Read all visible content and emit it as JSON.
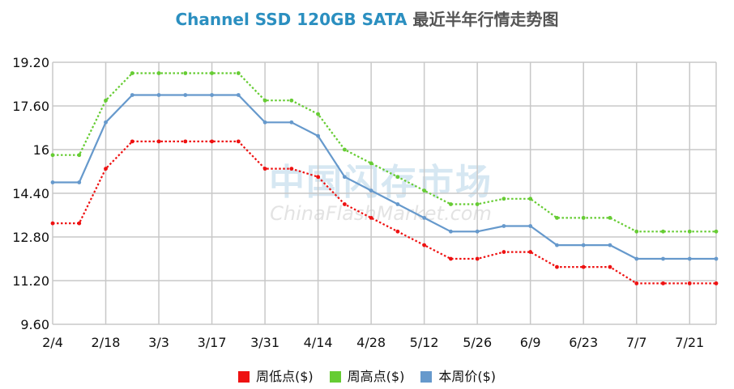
{
  "title": {
    "product": "Channel SSD 120GB SATA",
    "suffix": "最近半年行情走势图"
  },
  "watermark": {
    "cn": "中国闪存市场",
    "en": "ChinaFlashMarket.com"
  },
  "chart_data": {
    "type": "line",
    "title": "Channel SSD 120GB SATA 最近半年行情走势图",
    "x_ticks": [
      "2/4",
      "2/18",
      "3/3",
      "3/17",
      "3/31",
      "4/14",
      "4/28",
      "5/12",
      "5/26",
      "6/9",
      "6/23",
      "7/7",
      "7/21"
    ],
    "y_ticks": [
      "9.60",
      "11.20",
      "12.80",
      "14.40",
      "16",
      "17.60",
      "19.20"
    ],
    "ylim": [
      9.6,
      19.2
    ],
    "grid": true,
    "legend_position": "bottom",
    "x": [
      "2/4",
      "2/11",
      "2/18",
      "2/25",
      "3/3",
      "3/10",
      "3/17",
      "3/24",
      "3/31",
      "4/7",
      "4/14",
      "4/21",
      "4/28",
      "5/5",
      "5/12",
      "5/19",
      "5/26",
      "6/2",
      "6/9",
      "6/16",
      "6/23",
      "6/30",
      "7/7",
      "7/14",
      "7/21",
      "7/28"
    ],
    "series": [
      {
        "name": "周低点($)",
        "color": "#ee1111",
        "style": "dotted",
        "values": [
          13.3,
          13.3,
          15.3,
          16.3,
          16.3,
          16.3,
          16.3,
          16.3,
          15.3,
          15.3,
          15.0,
          14.0,
          13.5,
          13.0,
          12.5,
          12.0,
          12.0,
          12.25,
          12.25,
          11.7,
          11.7,
          11.7,
          11.1,
          11.1,
          11.1,
          11.1
        ]
      },
      {
        "name": "周高点($)",
        "color": "#66cc33",
        "style": "dotted",
        "values": [
          15.8,
          15.8,
          17.8,
          18.8,
          18.8,
          18.8,
          18.8,
          18.8,
          17.8,
          17.8,
          17.3,
          16.0,
          15.5,
          15.0,
          14.5,
          14.0,
          14.0,
          14.2,
          14.2,
          13.5,
          13.5,
          13.5,
          13.0,
          13.0,
          13.0,
          13.0
        ]
      },
      {
        "name": "本周价($)",
        "color": "#6699cc",
        "style": "solid",
        "values": [
          14.8,
          14.8,
          17.0,
          18.0,
          18.0,
          18.0,
          18.0,
          18.0,
          17.0,
          17.0,
          16.5,
          15.0,
          14.5,
          14.0,
          13.5,
          13.0,
          13.0,
          13.2,
          13.2,
          12.5,
          12.5,
          12.5,
          12.0,
          12.0,
          12.0,
          12.0
        ]
      }
    ]
  }
}
